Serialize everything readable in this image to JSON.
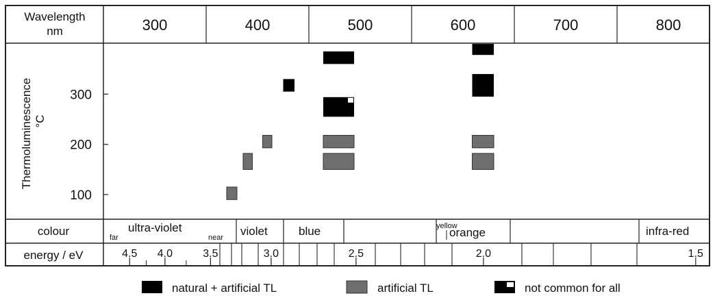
{
  "chart_data": {
    "type": "table",
    "x_axis": {
      "label_line1": "Wavelength",
      "label_line2": "nm",
      "ticks": [
        "300",
        "400",
        "500",
        "600",
        "700",
        "800"
      ]
    },
    "y_axis": {
      "label_line1": "Thermoluminescence",
      "label_line2": "°C",
      "ticks": [
        "100",
        "200",
        "300"
      ]
    },
    "legend": {
      "natural": "natural + artificial TL",
      "artificial": "artificial TL",
      "not_common": "not common for all",
      "colors": {
        "natural": "#000000",
        "artificial": "#6e6e6e"
      }
    },
    "bands": [
      {
        "wl_min": 370,
        "wl_max": 380,
        "t_min": 90,
        "t_max": 115,
        "type": "artificial"
      },
      {
        "wl_min": 386,
        "wl_max": 395,
        "t_min": 150,
        "t_max": 182,
        "type": "artificial"
      },
      {
        "wl_min": 405,
        "wl_max": 414,
        "t_min": 193,
        "t_max": 218,
        "type": "artificial"
      },
      {
        "wl_min": 425,
        "wl_max": 436,
        "t_min": 305,
        "t_max": 330,
        "type": "natural"
      },
      {
        "wl_min": 464,
        "wl_max": 494,
        "t_min": 150,
        "t_max": 182,
        "type": "artificial"
      },
      {
        "wl_min": 464,
        "wl_max": 494,
        "t_min": 193,
        "t_max": 218,
        "type": "artificial"
      },
      {
        "wl_min": 464,
        "wl_max": 494,
        "t_min": 255,
        "t_max": 294,
        "type": "not_common"
      },
      {
        "wl_min": 464,
        "wl_max": 494,
        "t_min": 360,
        "t_max": 385,
        "type": "natural"
      },
      {
        "wl_min": 609,
        "wl_max": 630,
        "t_min": 150,
        "t_max": 182,
        "type": "artificial"
      },
      {
        "wl_min": 609,
        "wl_max": 630,
        "t_min": 193,
        "t_max": 218,
        "type": "artificial"
      },
      {
        "wl_min": 609,
        "wl_max": 630,
        "t_min": 295,
        "t_max": 340,
        "type": "natural"
      },
      {
        "wl_min": 609,
        "wl_max": 630,
        "t_min": 378,
        "t_max": 400,
        "type": "natural"
      }
    ],
    "colour_row": {
      "label": "colour",
      "far": "far",
      "ultraviolet": "ultra-violet",
      "near": "near",
      "violet": "violet",
      "blue": "blue",
      "yellow": "yellow",
      "orange": "orange",
      "infrared": "infra-red"
    },
    "energy_row": {
      "label": "energy / eV",
      "labels": [
        {
          "text": "4.5",
          "ev": 4.5
        },
        {
          "text": "4.0",
          "ev": 4.0
        },
        {
          "text": "3.5",
          "ev": 3.5
        },
        {
          "text": "3.0",
          "ev": 3.0
        },
        {
          "text": "2.5",
          "ev": 2.5
        },
        {
          "text": "2.0",
          "ev": 2.0
        },
        {
          "text": "1.5",
          "ev": 1.5
        }
      ]
    }
  }
}
